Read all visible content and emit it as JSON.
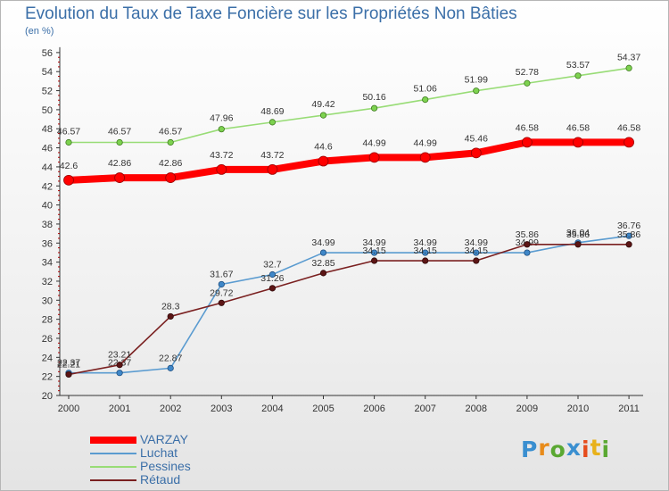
{
  "title": "Evolution du Taux de Taxe Foncière sur les Propriétés Non Bâties",
  "unit_label": "(en %)",
  "brand": {
    "letters": [
      "P",
      "r",
      "o",
      "x",
      "i",
      "t",
      "i"
    ],
    "colors": [
      "#3a8fd0",
      "#e88b1a",
      "#5aa832",
      "#3a8fd0",
      "#e64c1c",
      "#e8b11a",
      "#5aa832"
    ]
  },
  "chart_data": {
    "type": "line",
    "title": "Evolution du Taux de Taxe Foncière sur les Propriétés Non Bâties",
    "ylabel": "(en %)",
    "ylim": [
      20,
      56
    ],
    "y_ticks": [
      20,
      22,
      24,
      26,
      28,
      30,
      32,
      34,
      36,
      38,
      40,
      42,
      44,
      46,
      48,
      50,
      52,
      54,
      56
    ],
    "grid": false,
    "legend_position": "bottom-left",
    "categories": [
      "2000",
      "2001",
      "2002",
      "2003",
      "2004",
      "2005",
      "2006",
      "2007",
      "2008",
      "2009",
      "2010",
      "2011"
    ],
    "series": [
      {
        "name": "Pessines",
        "color": "#98dc76",
        "values": [
          46.57,
          46.57,
          46.57,
          47.96,
          48.69,
          49.42,
          50.16,
          51.06,
          51.99,
          52.78,
          53.57,
          54.37
        ],
        "labels": [
          "46.57",
          "46.57",
          "46.57",
          "47.96",
          "48.69",
          "49.42",
          "50.16",
          "51.06",
          "51.99",
          "52.78",
          "53.57",
          "54.37"
        ]
      },
      {
        "name": "VARZAY",
        "color": "#ff0000",
        "values": [
          42.6,
          42.86,
          42.86,
          43.72,
          43.72,
          44.6,
          44.99,
          44.99,
          45.46,
          46.58,
          46.58,
          46.58
        ],
        "labels": [
          "42.6",
          "42.86",
          "42.86",
          "43.72",
          "43.72",
          "44.6",
          "44.99",
          "44.99",
          "45.46",
          "46.58",
          "46.58",
          "46.58"
        ]
      },
      {
        "name": "Luchat",
        "color": "#5a9bd0",
        "values": [
          22.37,
          22.37,
          22.87,
          31.67,
          32.7,
          34.99,
          34.99,
          34.99,
          34.99,
          34.99,
          36.04,
          36.76
        ],
        "labels": [
          "22.37",
          "22.37",
          "22.87",
          "31.67",
          "32.7",
          "34.99",
          "34.99",
          "34.99",
          "34.99",
          "34.99",
          "36.04",
          "36.76"
        ]
      },
      {
        "name": "Rétaud",
        "color": "#7a2020",
        "values": [
          22.21,
          23.21,
          28.3,
          29.72,
          31.26,
          32.85,
          34.15,
          34.15,
          34.15,
          35.86,
          35.86,
          35.86
        ],
        "labels": [
          "22.21",
          "23.21",
          "28.3",
          "29.72",
          "31.26",
          "32.85",
          "34.15",
          "34.15",
          "34.15",
          "35.86",
          "35.86",
          "35.86"
        ]
      }
    ],
    "legend_order": [
      "VARZAY",
      "Luchat",
      "Pessines",
      "Rétaud"
    ]
  }
}
